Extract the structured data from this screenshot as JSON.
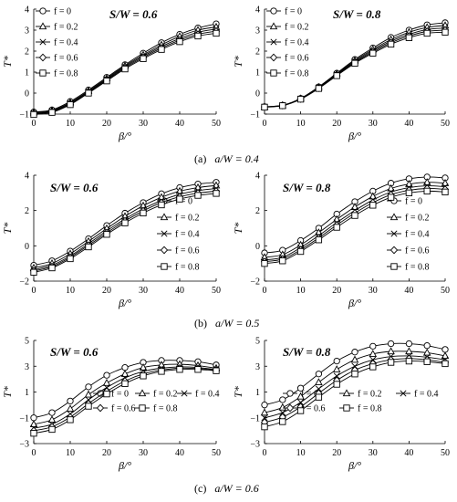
{
  "captions": [
    {
      "label": "(a)",
      "text": "a/W = 0.4"
    },
    {
      "label": "(b)",
      "text": "a/W = 0.5"
    },
    {
      "label": "(c)",
      "text": "a/W = 0.6"
    }
  ],
  "chart_data": [
    {
      "type": "line",
      "title": "S/W = 0.6",
      "xlabel": "β/°",
      "ylabel": "T*",
      "xlim": [
        0,
        50
      ],
      "ylim": [
        -1,
        4
      ],
      "xticks": [
        "0",
        "10",
        "20",
        "30",
        "40",
        "50"
      ],
      "yticks": [
        "−1",
        "0",
        "1",
        "2",
        "3",
        "4"
      ],
      "x": [
        0,
        5,
        10,
        15,
        20,
        25,
        30,
        35,
        40,
        45,
        50
      ],
      "series": [
        {
          "name": "f = 0",
          "marker": "circle",
          "values": [
            -0.9,
            -0.8,
            -0.4,
            0.15,
            0.75,
            1.35,
            1.9,
            2.4,
            2.8,
            3.1,
            3.3
          ]
        },
        {
          "name": "f = 0.2",
          "marker": "triangle",
          "values": [
            -0.93,
            -0.83,
            -0.45,
            0.1,
            0.7,
            1.3,
            1.82,
            2.3,
            2.7,
            3.0,
            3.15
          ]
        },
        {
          "name": "f = 0.4",
          "marker": "x",
          "values": [
            -0.96,
            -0.86,
            -0.48,
            0.07,
            0.66,
            1.25,
            1.76,
            2.22,
            2.6,
            2.9,
            3.05
          ]
        },
        {
          "name": "f = 0.6",
          "marker": "diamond",
          "values": [
            -0.99,
            -0.89,
            -0.52,
            0.03,
            0.62,
            1.2,
            1.7,
            2.15,
            2.52,
            2.8,
            2.95
          ]
        },
        {
          "name": "f = 0.8",
          "marker": "square",
          "values": [
            -1.02,
            -0.92,
            -0.55,
            0.0,
            0.58,
            1.15,
            1.64,
            2.08,
            2.45,
            2.72,
            2.85
          ]
        }
      ],
      "legend": "top-left"
    },
    {
      "type": "line",
      "title": "S/W = 0.8",
      "xlabel": "β/°",
      "ylabel": "T*",
      "xlim": [
        0,
        50
      ],
      "ylim": [
        -1,
        4
      ],
      "xticks": [
        "0",
        "10",
        "20",
        "30",
        "40",
        "50"
      ],
      "yticks": [
        "−1",
        "0",
        "1",
        "2",
        "3",
        "4"
      ],
      "x": [
        0,
        5,
        10,
        15,
        20,
        25,
        30,
        35,
        40,
        45,
        50
      ],
      "series": [
        {
          "name": "f = 0",
          "marker": "circle",
          "values": [
            -0.65,
            -0.58,
            -0.25,
            0.3,
            0.95,
            1.6,
            2.15,
            2.65,
            3.0,
            3.25,
            3.35
          ]
        },
        {
          "name": "f = 0.2",
          "marker": "triangle",
          "values": [
            -0.65,
            -0.58,
            -0.26,
            0.28,
            0.92,
            1.55,
            2.08,
            2.55,
            2.9,
            3.13,
            3.22
          ]
        },
        {
          "name": "f = 0.4",
          "marker": "x",
          "values": [
            -0.66,
            -0.59,
            -0.27,
            0.26,
            0.89,
            1.5,
            2.02,
            2.47,
            2.8,
            3.03,
            3.1
          ]
        },
        {
          "name": "f = 0.6",
          "marker": "diamond",
          "values": [
            -0.66,
            -0.59,
            -0.28,
            0.24,
            0.86,
            1.46,
            1.96,
            2.4,
            2.72,
            2.94,
            3.0
          ]
        },
        {
          "name": "f = 0.8",
          "marker": "square",
          "values": [
            -0.67,
            -0.6,
            -0.29,
            0.22,
            0.83,
            1.42,
            1.9,
            2.33,
            2.64,
            2.85,
            2.9
          ]
        }
      ],
      "legend": "top-left"
    },
    {
      "type": "line",
      "title": "S/W = 0.6",
      "xlabel": "β/°",
      "ylabel": "T*",
      "xlim": [
        0,
        50
      ],
      "ylim": [
        -2,
        4
      ],
      "xticks": [
        "0",
        "10",
        "20",
        "30",
        "40",
        "50"
      ],
      "yticks": [
        "−2",
        "0",
        "2",
        "4"
      ],
      "x": [
        0,
        5,
        10,
        15,
        20,
        25,
        30,
        35,
        40,
        45,
        50
      ],
      "series": [
        {
          "name": "f = 0",
          "marker": "circle",
          "values": [
            -1.1,
            -0.85,
            -0.3,
            0.4,
            1.15,
            1.85,
            2.45,
            2.95,
            3.3,
            3.5,
            3.6
          ]
        },
        {
          "name": "f = 0.2",
          "marker": "triangle",
          "values": [
            -1.25,
            -1.0,
            -0.45,
            0.25,
            0.98,
            1.67,
            2.27,
            2.75,
            3.1,
            3.3,
            3.42
          ]
        },
        {
          "name": "f = 0.4",
          "marker": "x",
          "values": [
            -1.35,
            -1.1,
            -0.57,
            0.12,
            0.85,
            1.52,
            2.1,
            2.57,
            2.92,
            3.13,
            3.25
          ]
        },
        {
          "name": "f = 0.6",
          "marker": "diamond",
          "values": [
            -1.42,
            -1.18,
            -0.65,
            0.03,
            0.74,
            1.41,
            1.98,
            2.45,
            2.78,
            2.99,
            3.1
          ]
        },
        {
          "name": "f = 0.8",
          "marker": "square",
          "values": [
            -1.5,
            -1.25,
            -0.73,
            -0.06,
            0.65,
            1.3,
            1.86,
            2.32,
            2.65,
            2.86,
            2.97
          ]
        }
      ],
      "legend": "right"
    },
    {
      "type": "line",
      "title": "S/W = 0.8",
      "xlabel": "β/°",
      "ylabel": "T*",
      "xlim": [
        0,
        50
      ],
      "ylim": [
        -2,
        4
      ],
      "xticks": [
        "0",
        "10",
        "20",
        "30",
        "40",
        "50"
      ],
      "yticks": [
        "−2",
        "0",
        "2",
        "4"
      ],
      "x": [
        0,
        5,
        10,
        15,
        20,
        25,
        30,
        35,
        40,
        45,
        50
      ],
      "series": [
        {
          "name": "f = 0",
          "marker": "circle",
          "values": [
            -0.4,
            -0.25,
            0.3,
            1.0,
            1.8,
            2.5,
            3.1,
            3.55,
            3.8,
            3.9,
            3.85
          ]
        },
        {
          "name": "f = 0.2",
          "marker": "triangle",
          "values": [
            -0.65,
            -0.5,
            0.05,
            0.75,
            1.5,
            2.2,
            2.8,
            3.25,
            3.5,
            3.6,
            3.55
          ]
        },
        {
          "name": "f = 0.4",
          "marker": "x",
          "values": [
            -0.8,
            -0.65,
            -0.1,
            0.58,
            1.32,
            2.0,
            2.6,
            3.05,
            3.3,
            3.4,
            3.35
          ]
        },
        {
          "name": "f = 0.6",
          "marker": "diamond",
          "values": [
            -0.9,
            -0.75,
            -0.22,
            0.45,
            1.18,
            1.86,
            2.45,
            2.9,
            3.15,
            3.25,
            3.2
          ]
        },
        {
          "name": "f = 0.8",
          "marker": "square",
          "values": [
            -1.0,
            -0.85,
            -0.32,
            0.34,
            1.05,
            1.72,
            2.3,
            2.75,
            3.0,
            3.1,
            3.05
          ]
        }
      ],
      "legend": "right"
    },
    {
      "type": "line",
      "title": "S/W = 0.6",
      "xlabel": "β/°",
      "ylabel": "T*",
      "xlim": [
        0,
        50
      ],
      "ylim": [
        -3,
        5
      ],
      "xticks": [
        "0",
        "10",
        "20",
        "30",
        "40",
        "50"
      ],
      "yticks": [
        "−3",
        "−1",
        "1",
        "3",
        "5"
      ],
      "x": [
        0,
        5,
        10,
        15,
        20,
        25,
        30,
        35,
        40,
        45,
        50
      ],
      "series": [
        {
          "name": "f = 0",
          "marker": "circle",
          "values": [
            -1.0,
            -0.6,
            0.3,
            1.4,
            2.3,
            2.9,
            3.3,
            3.45,
            3.45,
            3.35,
            3.1
          ]
        },
        {
          "name": "f = 0.2",
          "marker": "triangle",
          "values": [
            -1.5,
            -1.15,
            -0.3,
            0.8,
            1.7,
            2.4,
            2.9,
            3.1,
            3.15,
            3.05,
            2.85
          ]
        },
        {
          "name": "f = 0.4",
          "marker": "x",
          "values": [
            -1.8,
            -1.5,
            -0.7,
            0.4,
            1.35,
            2.1,
            2.6,
            2.85,
            2.95,
            2.9,
            2.75
          ]
        },
        {
          "name": "f = 0.6",
          "marker": "diamond",
          "values": [
            -2.0,
            -1.7,
            -0.95,
            0.1,
            1.05,
            1.85,
            2.4,
            2.7,
            2.85,
            2.82,
            2.7
          ]
        },
        {
          "name": "f = 0.8",
          "marker": "square",
          "values": [
            -2.2,
            -1.9,
            -1.15,
            -0.1,
            0.85,
            1.65,
            2.25,
            2.6,
            2.75,
            2.75,
            2.65
          ]
        }
      ],
      "legend": "bottom-right"
    },
    {
      "type": "line",
      "title": "S/W = 0.8",
      "xlabel": "β/°",
      "ylabel": "T*",
      "xlim": [
        0,
        50
      ],
      "ylim": [
        -3,
        5
      ],
      "xticks": [
        "0",
        "10",
        "20",
        "30",
        "40",
        "50"
      ],
      "yticks": [
        "−3",
        "−1",
        "1",
        "3",
        "5"
      ],
      "x": [
        0,
        5,
        10,
        15,
        20,
        25,
        30,
        35,
        40,
        45,
        50
      ],
      "series": [
        {
          "name": "f = 0",
          "marker": "circle",
          "values": [
            0.0,
            0.4,
            1.3,
            2.4,
            3.4,
            4.1,
            4.55,
            4.75,
            4.75,
            4.6,
            4.3
          ]
        },
        {
          "name": "f = 0.2",
          "marker": "triangle",
          "values": [
            -0.6,
            -0.2,
            0.65,
            1.75,
            2.75,
            3.5,
            3.95,
            4.15,
            4.15,
            4.05,
            3.8
          ]
        },
        {
          "name": "f = 0.4",
          "marker": "x",
          "values": [
            -1.0,
            -0.6,
            0.2,
            1.25,
            2.25,
            3.0,
            3.5,
            3.75,
            3.8,
            3.7,
            3.5
          ]
        },
        {
          "name": "f = 0.6",
          "marker": "diamond",
          "values": [
            -1.35,
            -0.95,
            -0.15,
            0.9,
            1.9,
            2.7,
            3.2,
            3.5,
            3.6,
            3.5,
            3.3
          ]
        },
        {
          "name": "f = 0.8",
          "marker": "square",
          "values": [
            -1.7,
            -1.3,
            -0.45,
            0.6,
            1.6,
            2.4,
            2.95,
            3.3,
            3.4,
            3.35,
            3.2
          ]
        }
      ],
      "legend": "bottom"
    }
  ]
}
